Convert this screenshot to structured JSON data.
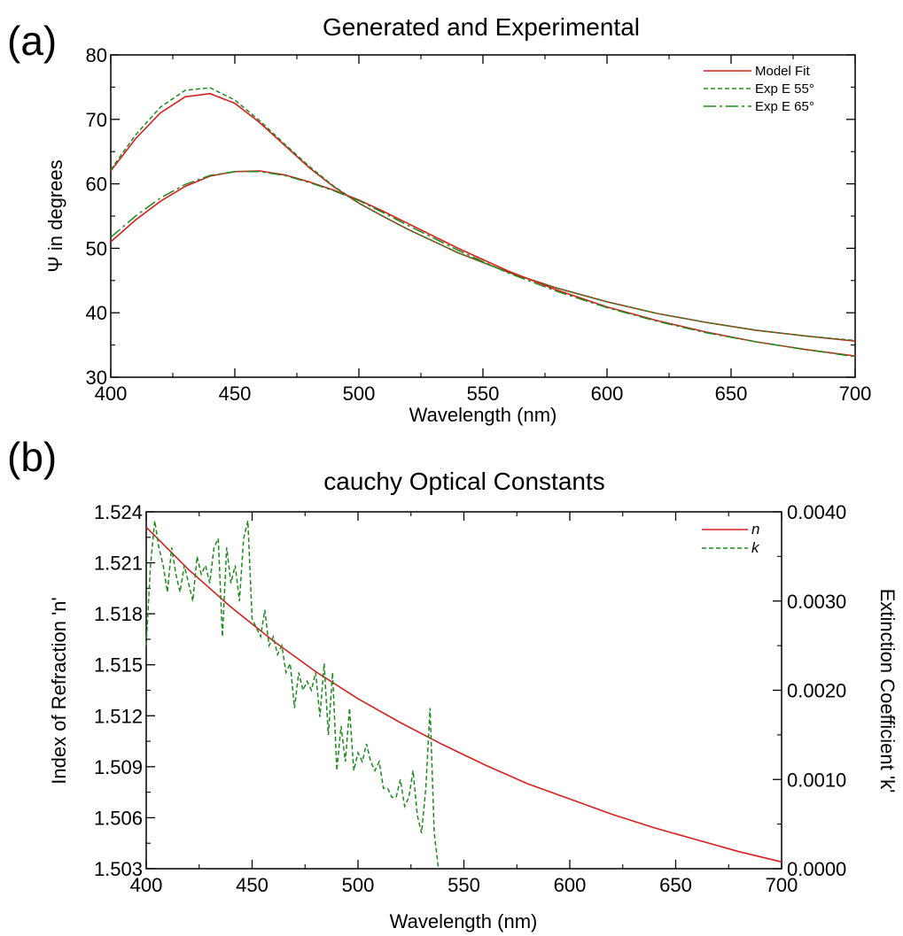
{
  "chart_data": [
    {
      "id": "a",
      "type": "line",
      "panel_label": "(a)",
      "title": "Generated and Experimental",
      "xlabel": "Wavelength (nm)",
      "ylabel": "Ψ in degrees",
      "xlim": [
        400,
        700
      ],
      "ylim": [
        30,
        80
      ],
      "xticks": [
        400,
        450,
        500,
        550,
        600,
        650,
        700
      ],
      "yticks": [
        30,
        40,
        50,
        60,
        70,
        80
      ],
      "grid": false,
      "legend_position": "top-right",
      "legend": [
        {
          "label": "Model Fit",
          "color": "#d62020",
          "dash": "solid"
        },
        {
          "label": "Exp E 55°",
          "color": "#1e8a1e",
          "dash": "short-dash"
        },
        {
          "label": "Exp E 65°",
          "color": "#1e8a1e",
          "dash": "long-dash"
        }
      ],
      "x": [
        400,
        410,
        420,
        430,
        440,
        450,
        460,
        470,
        480,
        490,
        500,
        510,
        520,
        540,
        560,
        580,
        600,
        620,
        640,
        660,
        680,
        700
      ],
      "series": [
        {
          "name": "Model Fit",
          "color": "#d62020",
          "dash": "solid",
          "values": [
            62.0,
            67.0,
            71.0,
            73.5,
            74.0,
            72.5,
            69.5,
            66.0,
            62.5,
            59.5,
            57.0,
            54.9,
            52.9,
            49.3,
            46.3,
            43.8,
            41.7,
            39.9,
            38.5,
            37.3,
            36.4,
            35.6
          ]
        },
        {
          "name": "Exp E 55°",
          "color": "#1e8a1e",
          "dash": "short-dash",
          "values": [
            62.2,
            67.6,
            71.9,
            74.5,
            74.9,
            73.0,
            69.8,
            66.2,
            62.7,
            59.6,
            57.0,
            54.9,
            52.9,
            49.3,
            46.3,
            43.8,
            41.7,
            39.9,
            38.5,
            37.3,
            36.4,
            35.7
          ]
        },
        {
          "name": "Model Fit",
          "color": "#d62020",
          "dash": "solid",
          "values": [
            51.0,
            54.4,
            57.3,
            59.6,
            61.2,
            61.9,
            62.0,
            61.4,
            60.3,
            59.0,
            57.5,
            55.7,
            53.8,
            50.0,
            46.5,
            43.5,
            40.9,
            38.8,
            37.0,
            35.5,
            34.3,
            33.3
          ]
        },
        {
          "name": "Exp E 65°",
          "color": "#1e8a1e",
          "dash": "long-dash",
          "values": [
            51.7,
            55.0,
            57.8,
            59.9,
            61.3,
            61.9,
            61.9,
            61.3,
            60.2,
            58.9,
            57.4,
            55.5,
            53.5,
            49.7,
            46.2,
            43.3,
            40.8,
            38.7,
            36.9,
            35.5,
            34.3,
            33.2
          ]
        }
      ]
    },
    {
      "id": "b",
      "type": "line",
      "panel_label": "(b)",
      "title": "cauchy Optical Constants",
      "xlabel": "Wavelength (nm)",
      "ylabel": "Index of Refraction 'n'",
      "y2label": "Extinction Coefficient 'k'",
      "xlim": [
        400,
        700
      ],
      "ylim": [
        1.503,
        1.524
      ],
      "y2lim": [
        0.0,
        0.004
      ],
      "xticks": [
        400,
        450,
        500,
        550,
        600,
        650,
        700
      ],
      "yticks": [
        "1.503",
        "1.506",
        "1.509",
        "1.512",
        "1.515",
        "1.518",
        "1.521",
        "1.524"
      ],
      "y2ticks": [
        "0.0000",
        "0.0010",
        "0.0020",
        "0.0030",
        "0.0040"
      ],
      "grid": false,
      "legend_position": "top-right",
      "legend": [
        {
          "label": "n",
          "color": "#d62020",
          "dash": "solid"
        },
        {
          "label": "k",
          "color": "#1e8a1e",
          "dash": "short-dash"
        }
      ],
      "series": [
        {
          "name": "n",
          "color": "#d62020",
          "dash": "solid",
          "axis": "left",
          "x": [
            400,
            420,
            440,
            460,
            480,
            500,
            520,
            540,
            560,
            580,
            600,
            620,
            640,
            660,
            680,
            700
          ],
          "values": [
            1.5231,
            1.5206,
            1.5184,
            1.5164,
            1.5146,
            1.513,
            1.5116,
            1.5103,
            1.5091,
            1.508,
            1.5071,
            1.5062,
            1.5054,
            1.5047,
            1.504,
            1.5034
          ]
        },
        {
          "name": "k",
          "color": "#1e8a1e",
          "dash": "short-dash",
          "axis": "right",
          "x": [
            400,
            402,
            404,
            406,
            408,
            410,
            412,
            414,
            416,
            418,
            420,
            422,
            424,
            426,
            428,
            430,
            432,
            434,
            436,
            438,
            440,
            442,
            444,
            446,
            448,
            450,
            452,
            454,
            456,
            458,
            460,
            462,
            464,
            466,
            468,
            470,
            472,
            474,
            476,
            478,
            480,
            482,
            484,
            486,
            488,
            490,
            492,
            494,
            496,
            498,
            500,
            502,
            504,
            506,
            508,
            510,
            512,
            514,
            516,
            518,
            520,
            522,
            524,
            526,
            528,
            530,
            532,
            534,
            536,
            538
          ],
          "values": [
            0.0025,
            0.0034,
            0.0039,
            0.0036,
            0.0034,
            0.0031,
            0.0036,
            0.0033,
            0.0031,
            0.0034,
            0.0032,
            0.003,
            0.0035,
            0.0033,
            0.0034,
            0.0032,
            0.0036,
            0.0037,
            0.0026,
            0.0036,
            0.0032,
            0.0034,
            0.003,
            0.0037,
            0.0039,
            0.0028,
            0.0027,
            0.0026,
            0.0029,
            0.0025,
            0.0026,
            0.0024,
            0.0025,
            0.0022,
            0.0023,
            0.0018,
            0.0022,
            0.002,
            0.0021,
            0.002,
            0.0022,
            0.0017,
            0.0023,
            0.0015,
            0.0022,
            0.0011,
            0.0016,
            0.0012,
            0.0018,
            0.0011,
            0.0013,
            0.0012,
            0.0014,
            0.0012,
            0.0011,
            0.0012,
            0.0009,
            0.0009,
            0.0008,
            0.0008,
            0.001,
            0.0007,
            0.0008,
            0.0011,
            0.0006,
            0.0004,
            0.0009,
            0.0018,
            0.0004,
            0.0
          ]
        }
      ]
    }
  ]
}
